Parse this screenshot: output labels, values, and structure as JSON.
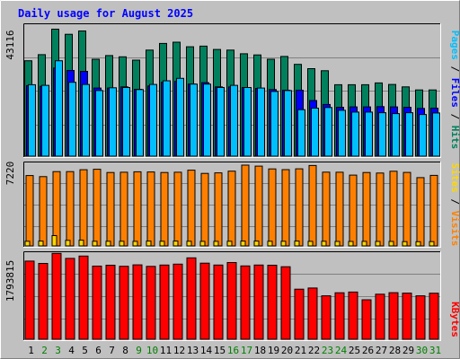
{
  "chart_data": {
    "type": "bar",
    "title": "Daily usage for August 2025",
    "days": [
      "1",
      "2",
      "3",
      "4",
      "5",
      "6",
      "7",
      "8",
      "9",
      "10",
      "11",
      "12",
      "13",
      "14",
      "15",
      "16",
      "17",
      "18",
      "19",
      "20",
      "21",
      "22",
      "23",
      "24",
      "25",
      "26",
      "27",
      "28",
      "29",
      "30",
      "31"
    ],
    "weekend_days": [
      "2",
      "3",
      "9",
      "10",
      "16",
      "17",
      "23",
      "24",
      "30",
      "31"
    ],
    "panels": [
      {
        "id": "hits-files-pages",
        "scale_label": "43116",
        "scale_max": 43116,
        "legend": [
          "Pages",
          "Files",
          "Hits"
        ],
        "series": [
          {
            "name": "Hits",
            "color": "#00805c",
            "values": [
              31400,
              33400,
              41800,
              40100,
              41200,
              31900,
              33100,
              32700,
              31600,
              34900,
              37100,
              37500,
              36000,
              36200,
              35100,
              34900,
              33700,
              33300,
              31900,
              32800,
              30200,
              28800,
              28100,
              23500,
              23500,
              23500,
              24100,
              23600,
              22800,
              21800,
              21800
            ]
          },
          {
            "name": "Files",
            "color": "#0000ff",
            "values": [
              23200,
              23000,
              29000,
              28200,
              27900,
              22400,
              22400,
              22800,
              22000,
              23100,
              24300,
              24600,
              23700,
              24200,
              22800,
              22800,
              22600,
              22300,
              21900,
              21700,
              21700,
              18300,
              17000,
              16100,
              16200,
              16200,
              16300,
              16200,
              16100,
              15700,
              15800
            ]
          },
          {
            "name": "Pages",
            "color": "#00bfff",
            "values": [
              23500,
              23300,
              31400,
              24300,
              23600,
              21600,
              22500,
              22600,
              21900,
              23600,
              24800,
              25600,
              23700,
              23700,
              22600,
              23300,
              22600,
              22400,
              21300,
              21600,
              15300,
              15800,
              16000,
              15100,
              14500,
              14500,
              14300,
              14000,
              14300,
              13700,
              14200
            ]
          }
        ]
      },
      {
        "id": "visits-sites",
        "scale_label": "7220",
        "scale_max": 7220,
        "legend": [
          "Sites",
          "Visits"
        ],
        "series": [
          {
            "name": "Visits",
            "color": "#ff8000",
            "values": [
              6150,
              6060,
              6500,
              6500,
              6660,
              6700,
              6420,
              6440,
              6480,
              6470,
              6420,
              6440,
              6620,
              6340,
              6390,
              6540,
              7060,
              6980,
              6730,
              6670,
              6740,
              7030,
              6450,
              6440,
              6190,
              6420,
              6370,
              6530,
              6430,
              5970,
              6170
            ]
          },
          {
            "name": "Sites",
            "color": "#ffd700",
            "values": [
              410,
              420,
              900,
              490,
              500,
              410,
              410,
              410,
              400,
              420,
              410,
              420,
              410,
              400,
              400,
              410,
              420,
              420,
              410,
              410,
              420,
              400,
              410,
              390,
              390,
              400,
              390,
              390,
              380,
              370,
              380
            ]
          }
        ]
      },
      {
        "id": "kbytes",
        "scale_label": "1793815",
        "scale_max": 1793815,
        "legend": [
          "KBytes"
        ],
        "series": [
          {
            "name": "KBytes",
            "color": "#ff0000",
            "values": [
              1628000,
              1578000,
              1788000,
              1683000,
              1732000,
              1522000,
              1541000,
              1519000,
              1549000,
              1517000,
              1545000,
              1564000,
              1694000,
              1584000,
              1546000,
              1597000,
              1526000,
              1546000,
              1541000,
              1509000,
              1042000,
              1067000,
              904000,
              968000,
              982000,
              822000,
              938000,
              970000,
              960000,
              905000,
              958000
            ]
          }
        ]
      }
    ]
  }
}
